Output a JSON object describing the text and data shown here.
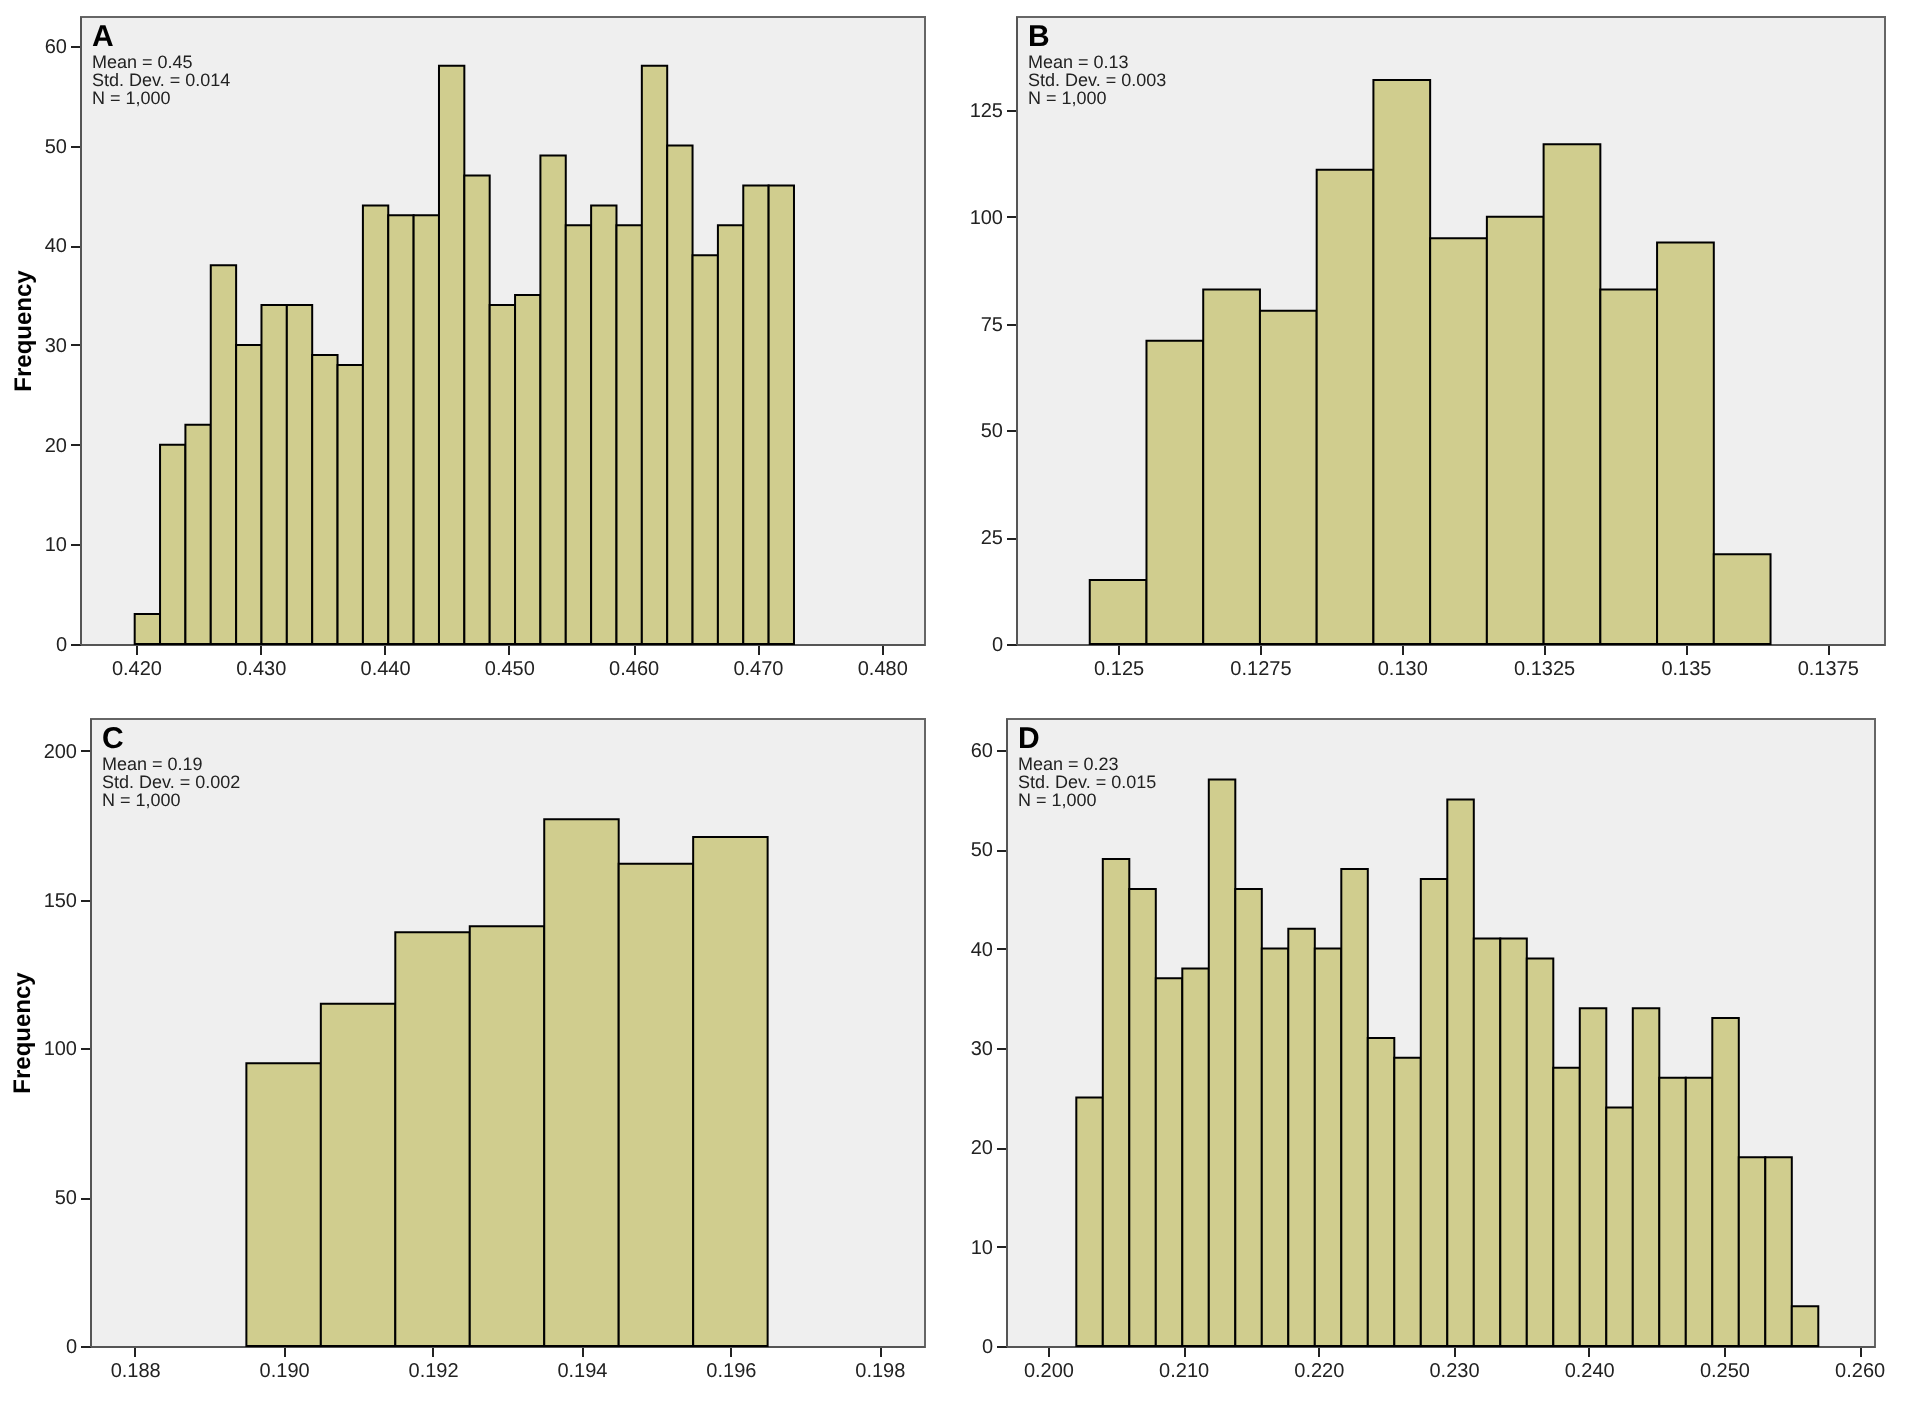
{
  "chart_data": [
    {
      "type": "histogram",
      "title": "A",
      "annotations": [
        "Mean = 0.45",
        "Std. Dev. = 0.014",
        "N = 1,000"
      ],
      "ylabel": "Frequency",
      "color": "#d0cd8e",
      "bins": [
        0.4199,
        0.42194,
        0.42398,
        0.42602,
        0.42806,
        0.4301,
        0.43214,
        0.43418,
        0.43622,
        0.43826,
        0.4403,
        0.44234,
        0.44438,
        0.44642,
        0.44846,
        0.4505,
        0.45254,
        0.45458,
        0.45662,
        0.45866,
        0.4607,
        0.46274,
        0.46478,
        0.46682,
        0.46886,
        0.4709,
        0.47294
      ],
      "values": [
        3,
        20,
        22,
        38,
        30,
        34,
        34,
        29,
        28,
        44,
        43,
        43,
        58,
        47,
        34,
        35,
        49,
        42,
        44,
        42,
        58,
        50,
        39,
        42,
        46,
        46
      ],
      "xlim": [
        0.4155,
        0.4834
      ],
      "xticks": [
        {
          "value": 0.42,
          "label": "0.420"
        },
        {
          "value": 0.43,
          "label": "0.430"
        },
        {
          "value": 0.44,
          "label": "0.440"
        },
        {
          "value": 0.45,
          "label": "0.450"
        },
        {
          "value": 0.46,
          "label": "0.460"
        },
        {
          "value": 0.47,
          "label": "0.470"
        },
        {
          "value": 0.48,
          "label": "0.480"
        }
      ],
      "ylim": [
        0,
        63
      ],
      "yticks": [
        0,
        10,
        20,
        30,
        40,
        50,
        60
      ]
    },
    {
      "type": "histogram",
      "title": "B",
      "annotations": [
        "Mean = 0.13",
        "Std. Dev. = 0.003",
        "N = 1,000"
      ],
      "color": "#d0cd8e",
      "bins": [
        0.1245,
        0.1255,
        0.1265,
        0.1275,
        0.1285,
        0.1295,
        0.1305,
        0.1315,
        0.1325,
        0.1335,
        0.1345,
        0.1355,
        0.1365
      ],
      "values": [
        15,
        71,
        83,
        78,
        111,
        132,
        95,
        100,
        117,
        83,
        94,
        21
      ],
      "xlim": [
        0.1232,
        0.1385
      ],
      "xticks": [
        {
          "value": 0.125,
          "label": "0.125"
        },
        {
          "value": 0.1275,
          "label": "0.1275"
        },
        {
          "value": 0.13,
          "label": "0.130"
        },
        {
          "value": 0.1325,
          "label": "0.1325"
        },
        {
          "value": 0.135,
          "label": "0.135"
        },
        {
          "value": 0.1375,
          "label": "0.1375"
        }
      ],
      "ylim": [
        0,
        147
      ],
      "yticks": [
        0,
        25,
        50,
        75,
        100,
        125
      ]
    },
    {
      "type": "histogram",
      "title": "C",
      "annotations": [
        "Mean = 0.19",
        "Std. Dev. = 0.002",
        "N = 1,000"
      ],
      "ylabel": "Frequency",
      "color": "#d0cd8e",
      "bins": [
        0.1895,
        0.1905,
        0.1915,
        0.1925,
        0.1935,
        0.1945,
        0.1955,
        0.1965
      ],
      "values": [
        95,
        115,
        139,
        141,
        177,
        162,
        171
      ],
      "xlim": [
        0.1874,
        0.1986
      ],
      "xticks": [
        {
          "value": 0.188,
          "label": "0.188"
        },
        {
          "value": 0.19,
          "label": "0.190"
        },
        {
          "value": 0.192,
          "label": "0.192"
        },
        {
          "value": 0.194,
          "label": "0.194"
        },
        {
          "value": 0.196,
          "label": "0.196"
        },
        {
          "value": 0.198,
          "label": "0.198"
        }
      ],
      "ylim": [
        0,
        211
      ],
      "yticks": [
        0,
        50,
        100,
        150,
        200
      ]
    },
    {
      "type": "histogram",
      "title": "D",
      "annotations": [
        "Mean = 0.23",
        "Std. Dev. = 0.015",
        "N = 1,000"
      ],
      "color": "#d0cd8e",
      "bins": [
        0.2021,
        0.20406,
        0.20602,
        0.20798,
        0.20994,
        0.2119,
        0.21386,
        0.21582,
        0.21778,
        0.21974,
        0.2217,
        0.22366,
        0.22562,
        0.22758,
        0.22954,
        0.2315,
        0.23346,
        0.23542,
        0.23738,
        0.23934,
        0.2413,
        0.24326,
        0.24522,
        0.24718,
        0.24914,
        0.2511,
        0.25306,
        0.25502,
        0.25698
      ],
      "values": [
        25,
        49,
        46,
        37,
        38,
        57,
        46,
        40,
        42,
        40,
        48,
        31,
        29,
        47,
        55,
        41,
        41,
        39,
        28,
        34,
        24,
        34,
        27,
        27,
        33,
        19,
        19,
        4
      ],
      "xlim": [
        0.1969,
        0.2611
      ],
      "xticks": [
        {
          "value": 0.2,
          "label": "0.200"
        },
        {
          "value": 0.21,
          "label": "0.210"
        },
        {
          "value": 0.22,
          "label": "0.220"
        },
        {
          "value": 0.23,
          "label": "0.230"
        },
        {
          "value": 0.24,
          "label": "0.240"
        },
        {
          "value": 0.25,
          "label": "0.250"
        },
        {
          "value": 0.26,
          "label": "0.260"
        }
      ],
      "ylim": [
        0,
        63.2
      ],
      "yticks": [
        0,
        10,
        20,
        30,
        40,
        50,
        60
      ]
    }
  ]
}
